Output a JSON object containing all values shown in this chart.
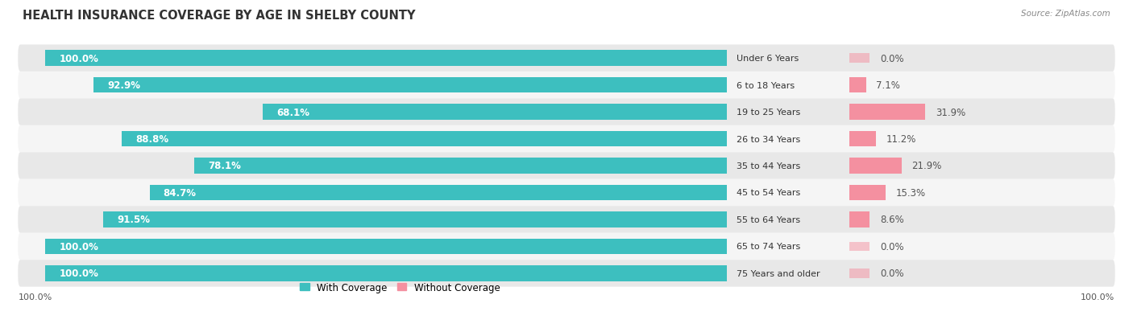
{
  "title": "HEALTH INSURANCE COVERAGE BY AGE IN SHELBY COUNTY",
  "source": "Source: ZipAtlas.com",
  "categories": [
    "Under 6 Years",
    "6 to 18 Years",
    "19 to 25 Years",
    "26 to 34 Years",
    "35 to 44 Years",
    "45 to 54 Years",
    "55 to 64 Years",
    "65 to 74 Years",
    "75 Years and older"
  ],
  "with_coverage": [
    100.0,
    92.9,
    68.1,
    88.8,
    78.1,
    84.7,
    91.5,
    100.0,
    100.0
  ],
  "without_coverage": [
    0.0,
    7.1,
    31.9,
    11.2,
    21.9,
    15.3,
    8.6,
    0.0,
    0.0
  ],
  "color_with": "#3dbfbf",
  "color_without": "#f490a0",
  "color_row_bg_light": "#e8e8e8",
  "color_row_bg_white": "#f5f5f5",
  "background_color": "#ffffff",
  "title_fontsize": 10.5,
  "label_fontsize": 8.5,
  "bar_height": 0.58,
  "legend_with": "With Coverage",
  "legend_without": "Without Coverage"
}
